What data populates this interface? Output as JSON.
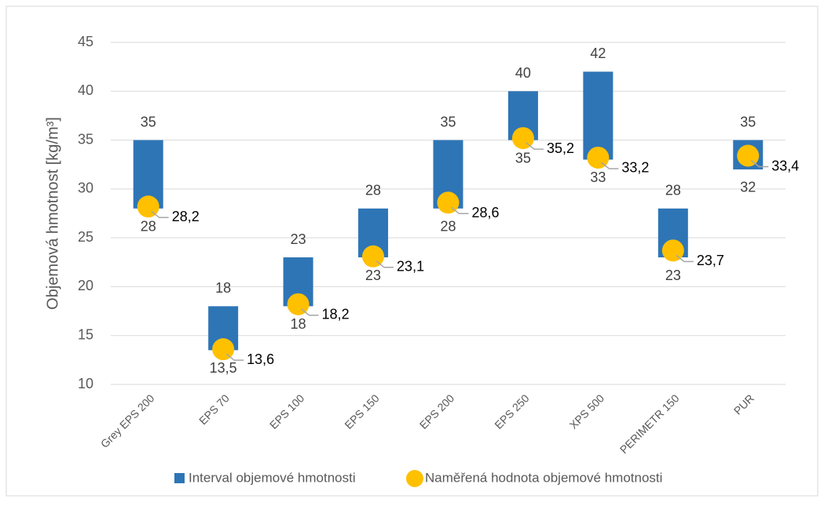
{
  "chart_data": {
    "type": "range_bar",
    "ylabel": "Objemová hmotnost [kg/m³]",
    "categories": [
      "Grey EPS 200",
      "EPS 70",
      "EPS 100",
      "EPS 150",
      "EPS 200",
      "EPS 250",
      "XPS 500",
      "PERIMETR 150",
      "PUR"
    ],
    "series": [
      {
        "name": "Interval objemové hmotnosti",
        "color": "#2e75b6",
        "low": [
          28,
          13.5,
          18,
          23,
          28,
          35,
          33,
          23,
          32
        ],
        "low_labels": [
          "28",
          "13,5",
          "18",
          "23",
          "28",
          "35",
          "33",
          "23",
          "32"
        ],
        "high": [
          35,
          18,
          23,
          28,
          35,
          40,
          42,
          28,
          35
        ]
      },
      {
        "name": "Naměřená hodnota objemové hmotnosti",
        "color": "#ffc000",
        "values": [
          28.2,
          13.6,
          18.2,
          23.1,
          28.6,
          35.2,
          33.2,
          23.7,
          33.4
        ],
        "value_labels": [
          "28,2",
          "13,6",
          "18,2",
          "23,1",
          "28,6",
          "35,2",
          "33,2",
          "23,7",
          "33,4"
        ]
      }
    ],
    "ylim": [
      10,
      45
    ],
    "yticks": [
      10,
      15,
      20,
      25,
      30,
      35,
      40,
      45
    ],
    "grid": true,
    "legend": "bottom"
  }
}
